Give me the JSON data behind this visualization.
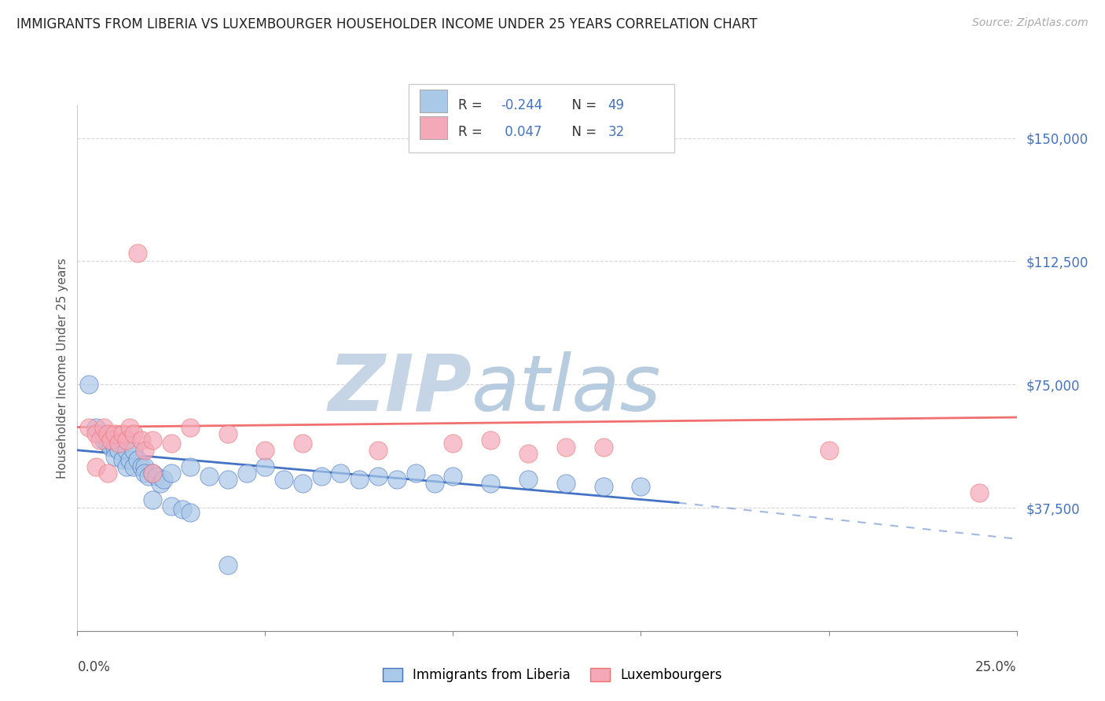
{
  "title": "IMMIGRANTS FROM LIBERIA VS LUXEMBOURGER HOUSEHOLDER INCOME UNDER 25 YEARS CORRELATION CHART",
  "source": "Source: ZipAtlas.com",
  "ylabel": "Householder Income Under 25 years",
  "xlim": [
    0.0,
    0.25
  ],
  "ylim": [
    0,
    160000
  ],
  "yticks": [
    0,
    37500,
    75000,
    112500,
    150000
  ],
  "ytick_labels": [
    "",
    "$37,500",
    "$75,000",
    "$112,500",
    "$150,000"
  ],
  "xtick_positions": [
    0.0,
    0.05,
    0.1,
    0.15,
    0.2,
    0.25
  ],
  "color_blue": "#aac8e8",
  "color_pink": "#f4a8b8",
  "line_blue": "#4472c4",
  "line_pink": "#f07070",
  "line_dash_blue": "#aac8e8",
  "text_blue": "#4472c4",
  "watermark_zip": "ZIP",
  "watermark_atlas": "atlas",
  "watermark_color_zip": "#c5d5e5",
  "watermark_color_atlas": "#b8cce0",
  "blue_x": [
    0.003,
    0.005,
    0.007,
    0.008,
    0.009,
    0.01,
    0.01,
    0.011,
    0.012,
    0.013,
    0.013,
    0.014,
    0.015,
    0.015,
    0.016,
    0.017,
    0.018,
    0.018,
    0.019,
    0.02,
    0.021,
    0.022,
    0.023,
    0.025,
    0.03,
    0.035,
    0.04,
    0.045,
    0.05,
    0.055,
    0.06,
    0.065,
    0.07,
    0.075,
    0.08,
    0.085,
    0.09,
    0.095,
    0.1,
    0.11,
    0.12,
    0.13,
    0.14,
    0.15,
    0.02,
    0.025,
    0.028,
    0.03,
    0.04
  ],
  "blue_y": [
    75000,
    62000,
    58000,
    57000,
    56000,
    56000,
    53000,
    55000,
    52000,
    55000,
    50000,
    52000,
    55000,
    50000,
    52000,
    50000,
    50000,
    48000,
    47000,
    48000,
    47000,
    45000,
    46000,
    48000,
    50000,
    47000,
    46000,
    48000,
    50000,
    46000,
    45000,
    47000,
    48000,
    46000,
    47000,
    46000,
    48000,
    45000,
    47000,
    45000,
    46000,
    45000,
    44000,
    44000,
    40000,
    38000,
    37000,
    36000,
    20000
  ],
  "pink_x": [
    0.003,
    0.005,
    0.006,
    0.007,
    0.008,
    0.009,
    0.01,
    0.011,
    0.012,
    0.013,
    0.014,
    0.015,
    0.016,
    0.017,
    0.018,
    0.02,
    0.025,
    0.03,
    0.04,
    0.05,
    0.06,
    0.08,
    0.1,
    0.11,
    0.12,
    0.13,
    0.14,
    0.2,
    0.24,
    0.005,
    0.008,
    0.02
  ],
  "pink_y": [
    62000,
    60000,
    58000,
    62000,
    60000,
    58000,
    60000,
    57000,
    60000,
    58000,
    62000,
    60000,
    115000,
    58000,
    55000,
    58000,
    57000,
    62000,
    60000,
    55000,
    57000,
    55000,
    57000,
    58000,
    54000,
    56000,
    56000,
    55000,
    42000,
    50000,
    48000,
    48000
  ],
  "line_blue_x0": 0.0,
  "line_blue_y0": 55000,
  "line_blue_x1": 0.16,
  "line_blue_y1": 39000,
  "line_dash_x0": 0.16,
  "line_dash_y0": 39000,
  "line_dash_x1": 0.25,
  "line_dash_y1": 28000,
  "line_pink_x0": 0.0,
  "line_pink_y0": 62000,
  "line_pink_x1": 0.25,
  "line_pink_y1": 65000
}
